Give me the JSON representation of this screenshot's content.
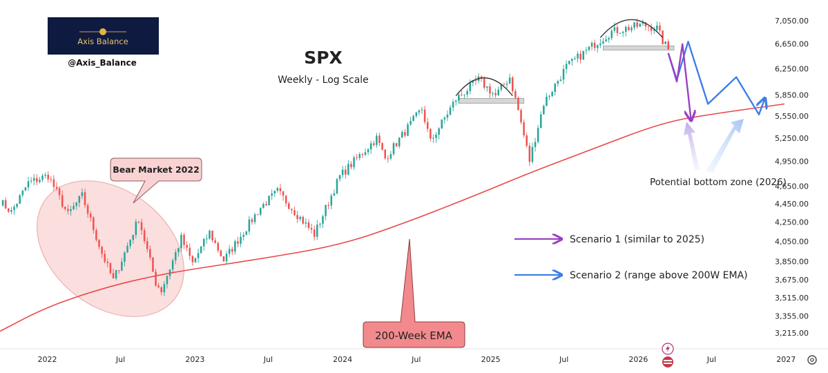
{
  "logo": {
    "text": "Axis Balance",
    "handle": "@Axis_Balance"
  },
  "chart_data": {
    "type": "candlestick",
    "title": "SPX",
    "subtitle": "Weekly - Log Scale",
    "y_scale": "log",
    "ylim": [
      3150,
      7250
    ],
    "xlim": [
      "2021-09-06",
      "2027-01-04"
    ],
    "y_ticks": [
      3215,
      3355,
      3515,
      3675,
      3850,
      4050,
      4250,
      4450,
      4650,
      4950,
      5250,
      5550,
      5850,
      6250,
      6650,
      7050
    ],
    "y_tick_labels": [
      "3,215.00",
      "3,355.00",
      "3,515.00",
      "3,675.00",
      "3,850.00",
      "4,050.00",
      "4,250.00",
      "4,450.00",
      "4,650.00",
      "4,950.00",
      "5,250.00",
      "5,550.00",
      "5,850.00",
      "6,250.00",
      "6,650.00",
      "7,050.00"
    ],
    "x_ticks": [
      {
        "label": "2022",
        "date": "2022-01-01"
      },
      {
        "label": "Jul",
        "date": "2022-07-01"
      },
      {
        "label": "2023",
        "date": "2023-01-01"
      },
      {
        "label": "Jul",
        "date": "2023-07-01"
      },
      {
        "label": "2024",
        "date": "2024-01-01"
      },
      {
        "label": "Jul",
        "date": "2024-07-01"
      },
      {
        "label": "2025",
        "date": "2025-01-01"
      },
      {
        "label": "Jul",
        "date": "2025-07-01"
      },
      {
        "label": "2026",
        "date": "2026-01-01"
      },
      {
        "label": "Jul",
        "date": "2026-07-01"
      },
      {
        "label": "2027",
        "date": "2027-01-01"
      }
    ],
    "price_anchors": [
      [
        "2021-09-06",
        4480
      ],
      [
        "2021-10-04",
        4360
      ],
      [
        "2021-11-15",
        4690
      ],
      [
        "2022-01-03",
        4780
      ],
      [
        "2022-02-21",
        4330
      ],
      [
        "2022-03-28",
        4540
      ],
      [
        "2022-05-16",
        3930
      ],
      [
        "2022-06-13",
        3670
      ],
      [
        "2022-08-15",
        4290
      ],
      [
        "2022-09-26",
        3650
      ],
      [
        "2022-10-10",
        3580
      ],
      [
        "2022-11-28",
        4080
      ],
      [
        "2022-12-26",
        3830
      ],
      [
        "2023-02-06",
        4140
      ],
      [
        "2023-03-13",
        3860
      ],
      [
        "2023-06-12",
        4410
      ],
      [
        "2023-07-24",
        4590
      ],
      [
        "2023-10-23",
        4120
      ],
      [
        "2023-12-25",
        4770
      ],
      [
        "2024-03-25",
        5250
      ],
      [
        "2024-04-15",
        4990
      ],
      [
        "2024-07-15",
        5650
      ],
      [
        "2024-08-05",
        5200
      ],
      [
        "2024-10-07",
        5790
      ],
      [
        "2024-12-02",
        6080
      ],
      [
        "2025-01-13",
        5840
      ],
      [
        "2025-02-17",
        6120
      ],
      [
        "2025-03-10",
        5630
      ],
      [
        "2025-04-07",
        4960
      ],
      [
        "2025-05-12",
        5730
      ],
      [
        "2025-07-07",
        6280
      ],
      [
        "2025-09-15",
        6650
      ],
      [
        "2025-10-27",
        6860
      ],
      [
        "2026-01-12",
        6980
      ],
      [
        "2026-02-16",
        6920
      ],
      [
        "2026-03-02",
        6700
      ],
      [
        "2026-03-16",
        6560
      ]
    ],
    "ema_200w": {
      "name": "200-Week EMA",
      "points": [
        [
          "2021-09-06",
          3230
        ],
        [
          "2022-01-03",
          3440
        ],
        [
          "2022-06-06",
          3620
        ],
        [
          "2022-10-03",
          3720
        ],
        [
          "2023-01-02",
          3780
        ],
        [
          "2023-06-05",
          3870
        ],
        [
          "2023-12-25",
          4010
        ],
        [
          "2024-06-03",
          4240
        ],
        [
          "2024-12-02",
          4560
        ],
        [
          "2025-04-07",
          4810
        ],
        [
          "2025-09-01",
          5090
        ],
        [
          "2026-03-02",
          5460
        ],
        [
          "2026-07-06",
          5580
        ],
        [
          "2026-12-28",
          5720
        ]
      ]
    },
    "neckline_zones": [
      {
        "from": "2024-10-14",
        "to": "2025-03-24",
        "low": 5730,
        "high": 5800
      },
      {
        "from": "2025-10-06",
        "to": "2026-03-30",
        "low": 6550,
        "high": 6620
      }
    ],
    "top_arcs": [
      {
        "from": "2024-10-07",
        "to": "2025-02-24",
        "peak": 6150
      },
      {
        "from": "2025-09-29",
        "to": "2026-03-02",
        "peak": 7120
      }
    ],
    "scenario_1": {
      "name": "Scenario 1 (similar to 2025)",
      "color": "#9b3fc5",
      "path": [
        [
          "2026-03-16",
          6500
        ],
        [
          "2026-04-06",
          6050
        ],
        [
          "2026-04-20",
          6650
        ],
        [
          "2026-05-11",
          5500
        ]
      ]
    },
    "scenario_2": {
      "name": "Scenario 2 (range above 200W EMA)",
      "color": "#3d7ee8",
      "path": [
        [
          "2026-03-16",
          6500
        ],
        [
          "2026-04-06",
          6080
        ],
        [
          "2026-05-04",
          6690
        ],
        [
          "2026-06-22",
          5720
        ],
        [
          "2026-08-31",
          6120
        ],
        [
          "2026-10-26",
          5570
        ],
        [
          "2026-11-09",
          5790
        ]
      ]
    },
    "annotations": {
      "bear_market": "Bear Market 2022",
      "ema_label": "200-Week EMA",
      "bottom_zone": "Potential bottom zone (2026)"
    },
    "colors": {
      "up": "#26a69a",
      "down": "#ef5350",
      "ema": "#e8474a",
      "bear_fill": "#f9d3d3",
      "ema_label_fill": "#f28a8d",
      "zone_fill": "#d6d6d6"
    }
  }
}
